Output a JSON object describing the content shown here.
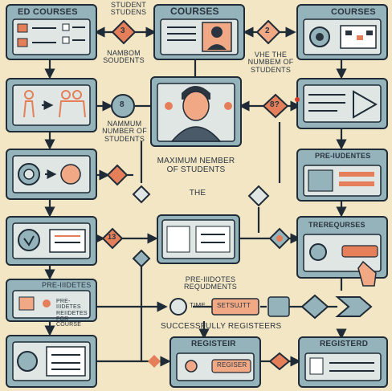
{
  "boxes": {
    "top_left_title": "ED COURSES",
    "top_center_title": "COURSES",
    "top_right_title": "COURSES",
    "pre_right_title": "PRE-IUDENTES",
    "tre_right_title": "TREREQURSES",
    "bottom_left_title": "PRE-IIIDETES",
    "bottom_left_sub": "PRE-IIIDETES REIIDETES FOR COURSE",
    "bottom_center_title": "REGISTEIR",
    "bottom_center_button": "REGISER",
    "bottom_right_title": "REGISTERD"
  },
  "labels": {
    "student_studens": "STUDENT STUDENS",
    "nambom_soudents": "NAMBOM SOUDENTS",
    "vhe_the_number": "VHE THE NUMBEM OF STUDENTS",
    "nammum_number": "NAMMUM NUMBER OF STUDENTS",
    "maximum_number": "MAXIMUM NEMBER OF STUDENTS",
    "the": "THE",
    "pre_iidotes_requirements": "PRE-IIIDOTES REQUDMENTS",
    "successfully_registers": "SUCCESSFULLY REGISTEERS",
    "time_pill": "TIME",
    "setsubjtt_pill": "SETSUJTT"
  },
  "nodes": {
    "num_3": "3",
    "num_2": "2",
    "num_8": "8",
    "num_8_2": "8?",
    "num_13": "13"
  },
  "colors": {
    "background": "#f3e6c4",
    "box_fill": "#94b3ba",
    "box_inner": "#dfe6e3",
    "stroke": "#1f2b36",
    "accent": "#e47f5a",
    "accent_light": "#f1a884"
  }
}
